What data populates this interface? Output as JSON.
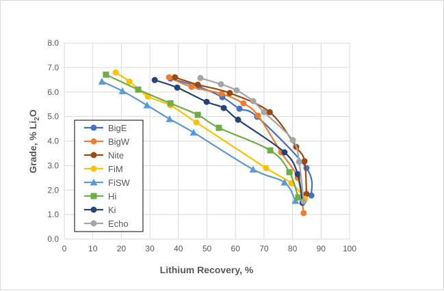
{
  "chart_data": {
    "type": "line",
    "xlabel": "Lithium Recovery, %",
    "ylabel_main": "Grade, % Li",
    "ylabel_sub": "2",
    "ylabel_end": "O",
    "xlim": [
      0,
      100
    ],
    "ylim": [
      0,
      8
    ],
    "xticks": [
      "0",
      "10",
      "20",
      "30",
      "40",
      "50",
      "60",
      "70",
      "80",
      "90",
      "100"
    ],
    "yticks": [
      "0.0",
      "1.0",
      "2.0",
      "3.0",
      "4.0",
      "5.0",
      "6.0",
      "7.0",
      "8.0"
    ],
    "grid": true,
    "legend_position": "left-inside",
    "series": [
      {
        "name": "BigE",
        "color": "#4472C4",
        "marker": "circle",
        "x": [
          37.2,
          47.2,
          55.4,
          61.4,
          67.6,
          84.9,
          86.6
        ],
        "y": [
          6.55,
          6.21,
          5.79,
          5.32,
          4.99,
          2.9,
          1.78
        ]
      },
      {
        "name": "BigW",
        "color": "#ED7D31",
        "marker": "circle",
        "x": [
          36.7,
          44.6,
          55.2,
          62.8,
          67.9,
          76.0,
          81.8,
          83.9
        ],
        "y": [
          6.6,
          6.21,
          5.93,
          5.54,
          5.04,
          3.54,
          2.5,
          1.06
        ]
      },
      {
        "name": "Nite",
        "color": "#9E480E",
        "marker": "circle",
        "x": [
          38.8,
          46.8,
          58.0,
          72.0,
          81.3,
          84.2,
          84.9
        ],
        "y": [
          6.6,
          6.3,
          5.96,
          5.18,
          3.76,
          3.18,
          1.84
        ]
      },
      {
        "name": "FiM",
        "color": "#FFC000",
        "marker": "circle",
        "x": [
          18.0,
          22.8,
          29.3,
          37.2,
          46.3,
          70.7,
          79.6,
          84.4
        ],
        "y": [
          6.8,
          6.43,
          5.82,
          5.46,
          4.76,
          2.9,
          2.28,
          1.64
        ]
      },
      {
        "name": "FiSW",
        "color": "#5B9BD5",
        "marker": "triangle",
        "x": [
          13.2,
          20.4,
          29.0,
          36.9,
          45.3,
          66.2,
          77.2,
          81.0
        ],
        "y": [
          6.43,
          6.04,
          5.46,
          4.9,
          4.35,
          2.84,
          2.31,
          1.56
        ]
      },
      {
        "name": "Hi",
        "color": "#70AD47",
        "marker": "square",
        "x": [
          14.6,
          25.9,
          37.2,
          46.8,
          54.2,
          72.2,
          78.9,
          82.0
        ],
        "y": [
          6.71,
          6.1,
          5.54,
          5.07,
          4.54,
          3.62,
          2.73,
          1.7
        ]
      },
      {
        "name": "Ki",
        "color": "#264478",
        "marker": "circle",
        "x": [
          31.7,
          39.6,
          49.9,
          55.9,
          60.9,
          77.2,
          81.8,
          83.5
        ],
        "y": [
          6.49,
          6.18,
          5.6,
          5.35,
          4.87,
          3.54,
          2.65,
          1.48
        ]
      },
      {
        "name": "Echo",
        "color": "#A5A5A5",
        "marker": "circle",
        "x": [
          47.7,
          54.9,
          60.4,
          66.2,
          70.0,
          80.1,
          82.3,
          83.9
        ],
        "y": [
          6.57,
          6.32,
          6.07,
          5.63,
          5.18,
          4.04,
          3.15,
          1.53
        ]
      }
    ]
  }
}
